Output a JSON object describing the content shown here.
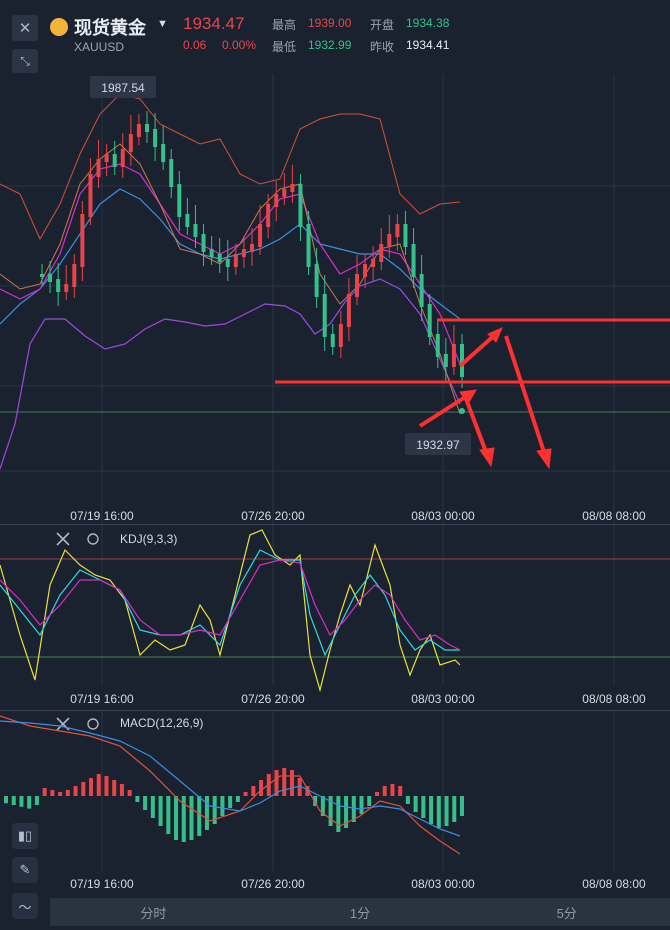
{
  "header": {
    "title": "现货黄金",
    "symbol": "XAUUSD",
    "price": "1934.47",
    "change": "0.06",
    "change_pct": "0.00%",
    "high_label": "最高",
    "high_value": "1939.00",
    "low_label": "最低",
    "low_value": "1932.99",
    "open_label": "开盘",
    "open_value": "1934.38",
    "prev_close_label": "昨收",
    "prev_close_value": "1934.41"
  },
  "main_chart": {
    "max_label": "1987.54",
    "current_label": "1932.97",
    "x_labels": [
      "07/19 16:00",
      "07/26 20:00",
      "08/03 00:00",
      "08/08 08:00"
    ]
  },
  "kdj": {
    "title": "KDJ(9,3,3)",
    "x_labels": [
      "07/19 16:00",
      "07/26 20:00",
      "08/03 00:00",
      "08/08 08:00"
    ]
  },
  "macd": {
    "title": "MACD(12,26,9)",
    "x_labels": [
      "07/19 16:00",
      "07/26 20:00",
      "08/03 00:00",
      "08/08 08:00"
    ]
  },
  "tabs": [
    "分时",
    "1分",
    "5分"
  ],
  "colors": {
    "up": "#e8454a",
    "down": "#35c08a",
    "background": "#1a2230",
    "annotation": "#ff3030"
  },
  "chart_data": {
    "type": "candlestick",
    "series": [
      {
        "name": "K",
        "values": []
      },
      {
        "name": "D",
        "values": []
      }
    ]
  }
}
